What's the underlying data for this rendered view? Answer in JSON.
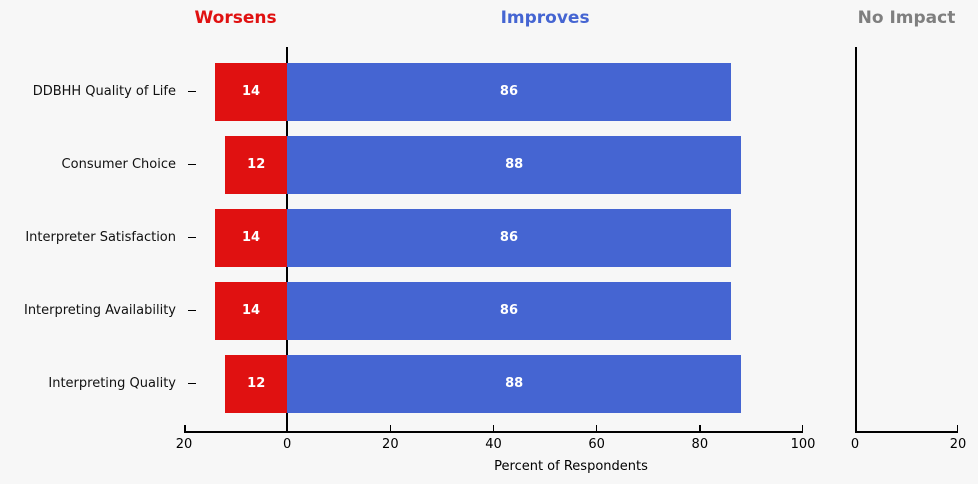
{
  "figure": {
    "background": "#f7f7f7"
  },
  "chart_data": {
    "type": "bar",
    "variant": "horizontal-diverging",
    "categories": [
      "DDBHH Quality of Life",
      "Consumer Choice",
      "Interpreter Satisfaction",
      "Interpreting Availability",
      "Interpreting Quality"
    ],
    "series": [
      {
        "name": "Worsens",
        "color": "#e01111",
        "values": [
          14,
          12,
          14,
          14,
          12
        ]
      },
      {
        "name": "Improves",
        "color": "#4565d2",
        "values": [
          86,
          88,
          86,
          86,
          88
        ]
      },
      {
        "name": "No Impact",
        "color": "#7f7f7f",
        "values": [
          0,
          0,
          0,
          0,
          0
        ]
      }
    ],
    "panels": [
      {
        "label": "Worsens",
        "color": "#e01111"
      },
      {
        "label": "Improves",
        "color": "#4565d2"
      },
      {
        "label": "No Impact",
        "color": "#7f7f7f"
      }
    ],
    "bar_value_labels": true,
    "main_axis": {
      "tick_labels": [
        "20",
        "0",
        "20",
        "40",
        "60",
        "80",
        "100"
      ],
      "tick_values": [
        -20,
        0,
        20,
        40,
        60,
        80,
        100
      ],
      "domain": [
        -20,
        100
      ]
    },
    "no_impact_axis": {
      "tick_labels": [
        "0",
        "20"
      ],
      "tick_values": [
        0,
        20
      ],
      "domain": [
        0,
        20
      ]
    },
    "xlabel": "Percent of Respondents",
    "grid": false,
    "legend_position": "panel-headers"
  }
}
